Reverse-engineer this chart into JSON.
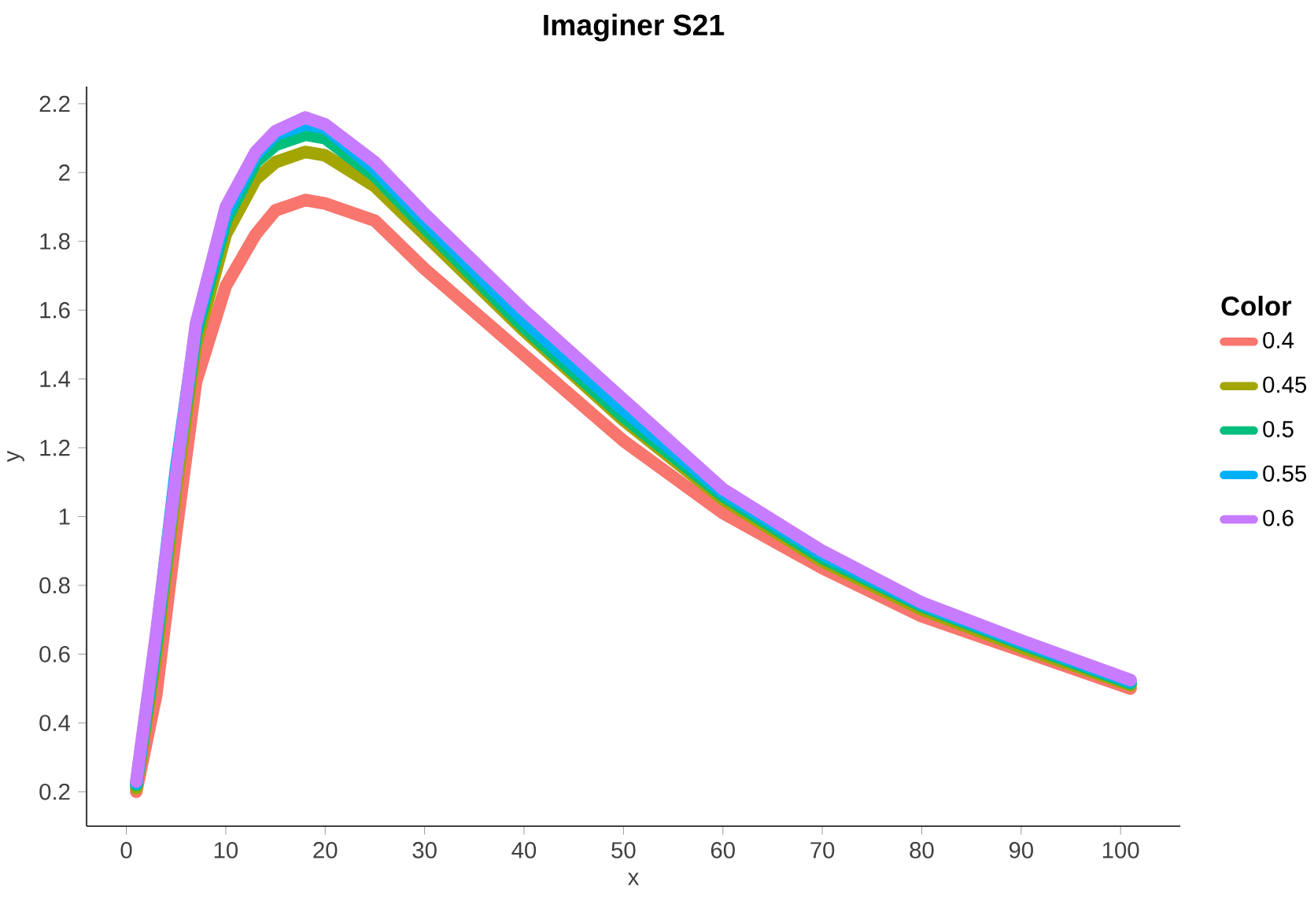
{
  "chart_data": {
    "type": "line",
    "title": "Imaginer S21",
    "xlabel": "x",
    "ylabel": "y",
    "legend_title": "Color",
    "legend": "right",
    "grid": false,
    "x": [
      1,
      3,
      5,
      7,
      10,
      13,
      15,
      18,
      20,
      25,
      30,
      40,
      50,
      60,
      70,
      80,
      90,
      101
    ],
    "xlim": [
      -4,
      106
    ],
    "xticks": [
      0,
      10,
      20,
      30,
      40,
      50,
      60,
      70,
      80,
      90,
      100
    ],
    "ylim": [
      0.1,
      2.25
    ],
    "yticks": [
      0.2,
      0.4,
      0.6,
      0.8,
      1,
      1.2,
      1.4,
      1.6,
      1.8,
      2,
      2.2
    ],
    "series": [
      {
        "name": "0.4",
        "color": "#f8766d",
        "values": [
          0.2,
          0.48,
          0.95,
          1.39,
          1.67,
          1.82,
          1.89,
          1.92,
          1.91,
          1.86,
          1.72,
          1.47,
          1.22,
          1.01,
          0.85,
          0.71,
          0.61,
          0.5
        ]
      },
      {
        "name": "0.45",
        "color": "#a3a500",
        "values": [
          0.21,
          0.6,
          1.08,
          1.5,
          1.82,
          1.98,
          2.03,
          2.06,
          2.05,
          1.96,
          1.82,
          1.54,
          1.28,
          1.05,
          0.87,
          0.73,
          0.62,
          0.51
        ]
      },
      {
        "name": "0.5",
        "color": "#00bf7d",
        "values": [
          0.22,
          0.63,
          1.12,
          1.53,
          1.86,
          2.03,
          2.08,
          2.11,
          2.1,
          1.99,
          1.84,
          1.55,
          1.29,
          1.06,
          0.88,
          0.74,
          0.63,
          0.515
        ]
      },
      {
        "name": "0.55",
        "color": "#00b0f6",
        "values": [
          0.225,
          0.65,
          1.14,
          1.55,
          1.88,
          2.05,
          2.11,
          2.14,
          2.13,
          2.01,
          1.86,
          1.57,
          1.31,
          1.07,
          0.89,
          0.745,
          0.635,
          0.52
        ]
      },
      {
        "name": "0.6",
        "color": "#c77cff",
        "values": [
          0.23,
          0.66,
          1.12,
          1.56,
          1.9,
          2.06,
          2.12,
          2.16,
          2.14,
          2.03,
          1.88,
          1.6,
          1.34,
          1.08,
          0.9,
          0.75,
          0.64,
          0.525
        ]
      }
    ]
  }
}
